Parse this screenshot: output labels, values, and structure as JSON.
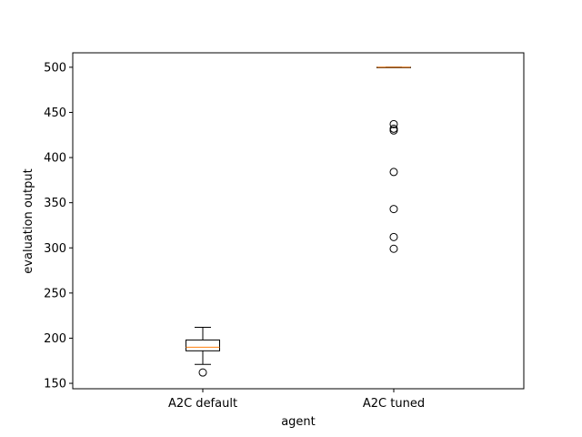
{
  "chart_data": {
    "type": "box",
    "xlabel": "agent",
    "ylabel": "evaluation output",
    "ylim": [
      144,
      516
    ],
    "yticks": [
      150,
      200,
      250,
      300,
      350,
      400,
      450,
      500
    ],
    "grid": false,
    "categories": [
      "A2C default",
      "A2C tuned"
    ],
    "boxes": [
      {
        "label": "A2C default",
        "whisker_low": 171,
        "q1": 186,
        "median": 190,
        "q3": 198,
        "whisker_high": 212,
        "outliers": [
          162
        ]
      },
      {
        "label": "A2C tuned",
        "whisker_low": 500,
        "q1": 500,
        "median": 500,
        "q3": 500,
        "whisker_high": 500,
        "outliers": [
          437,
          432,
          430,
          384,
          343,
          312,
          299
        ]
      }
    ],
    "colors": {
      "box": "#000000",
      "median": "#ff7f0e",
      "flier": "#000000"
    }
  }
}
